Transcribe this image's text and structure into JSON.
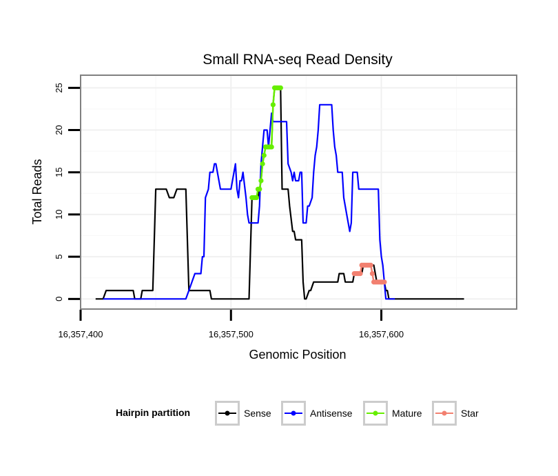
{
  "chart_data": {
    "type": "line",
    "title": "Small RNA-seq Read Density",
    "xlabel": "Genomic Position",
    "ylabel": "Total Reads",
    "xlim": [
      16357400,
      16357690
    ],
    "ylim": [
      -1.2,
      26.5
    ],
    "x_ticks": [
      {
        "value": 16357400,
        "label": "16,357,400"
      },
      {
        "value": 16357500,
        "label": "16,357,500"
      },
      {
        "value": 16357600,
        "label": "16,357,600"
      }
    ],
    "y_ticks": [
      {
        "value": 0,
        "label": "0"
      },
      {
        "value": 5,
        "label": "5"
      },
      {
        "value": 10,
        "label": "10"
      },
      {
        "value": 15,
        "label": "15"
      },
      {
        "value": 20,
        "label": "20"
      },
      {
        "value": 25,
        "label": "25"
      }
    ],
    "grid": true,
    "legend": {
      "title": "Hairpin partition",
      "position": "bottom",
      "entries": [
        "Sense",
        "Antisense",
        "Mature",
        "Star"
      ]
    },
    "series": [
      {
        "name": "Sense",
        "color": "#000000",
        "style": "line",
        "points": [
          [
            16357410,
            0
          ],
          [
            16357415,
            0
          ],
          [
            16357417,
            1
          ],
          [
            16357435,
            1
          ],
          [
            16357436,
            0
          ],
          [
            16357440,
            0
          ],
          [
            16357441,
            1
          ],
          [
            16357448,
            1
          ],
          [
            16357450,
            13
          ],
          [
            16357457,
            13
          ],
          [
            16357459,
            12
          ],
          [
            16357462,
            12
          ],
          [
            16357464,
            13
          ],
          [
            16357470,
            13
          ],
          [
            16357472,
            1
          ],
          [
            16357486,
            1
          ],
          [
            16357487,
            0
          ],
          [
            16357512,
            0
          ],
          [
            16357514,
            12
          ],
          [
            16357518,
            12
          ],
          [
            16357519,
            13
          ],
          [
            16357520,
            14
          ],
          [
            16357521,
            16
          ],
          [
            16357522,
            17
          ],
          [
            16357523,
            18
          ],
          [
            16357527,
            18
          ],
          [
            16357528,
            23
          ],
          [
            16357529,
            25
          ],
          [
            16357533,
            25
          ],
          [
            16357534,
            13
          ],
          [
            16357538,
            13
          ],
          [
            16357539,
            11
          ],
          [
            16357541,
            8
          ],
          [
            16357542,
            8
          ],
          [
            16357543,
            7
          ],
          [
            16357547,
            7
          ],
          [
            16357548,
            2
          ],
          [
            16357549,
            0
          ],
          [
            16357550,
            0
          ],
          [
            16357552,
            1
          ],
          [
            16357553,
            1
          ],
          [
            16357555,
            2
          ],
          [
            16357571,
            2
          ],
          [
            16357572,
            3
          ],
          [
            16357575,
            3
          ],
          [
            16357576,
            2
          ],
          [
            16357581,
            2
          ],
          [
            16357582,
            3
          ],
          [
            16357587,
            3
          ],
          [
            16357588,
            4
          ],
          [
            16357595,
            4
          ],
          [
            16357596,
            3
          ],
          [
            16357597,
            2
          ],
          [
            16357602,
            2
          ],
          [
            16357603,
            1
          ],
          [
            16357604,
            1
          ],
          [
            16357605,
            0
          ],
          [
            16357655,
            0
          ]
        ]
      },
      {
        "name": "Antisense",
        "color": "#0000ff",
        "style": "line",
        "points": [
          [
            16357415,
            0
          ],
          [
            16357470,
            0
          ],
          [
            16357472,
            1
          ],
          [
            16357476,
            3
          ],
          [
            16357480,
            3
          ],
          [
            16357481,
            5
          ],
          [
            16357482,
            5
          ],
          [
            16357483,
            12
          ],
          [
            16357485,
            13
          ],
          [
            16357486,
            15
          ],
          [
            16357488,
            15
          ],
          [
            16357489,
            16
          ],
          [
            16357490,
            16
          ],
          [
            16357492,
            14
          ],
          [
            16357493,
            13
          ],
          [
            16357500,
            13
          ],
          [
            16357503,
            16
          ],
          [
            16357504,
            13
          ],
          [
            16357505,
            12
          ],
          [
            16357506,
            14
          ],
          [
            16357507,
            14
          ],
          [
            16357508,
            15
          ],
          [
            16357510,
            12
          ],
          [
            16357511,
            10
          ],
          [
            16357512,
            9
          ],
          [
            16357518,
            9
          ],
          [
            16357519,
            11
          ],
          [
            16357520,
            16
          ],
          [
            16357521,
            18
          ],
          [
            16357522,
            20
          ],
          [
            16357524,
            20
          ],
          [
            16357525,
            18
          ],
          [
            16357526,
            20
          ],
          [
            16357527,
            22
          ],
          [
            16357528,
            21
          ],
          [
            16357537,
            21
          ],
          [
            16357538,
            16
          ],
          [
            16357540,
            15
          ],
          [
            16357541,
            14
          ],
          [
            16357542,
            15
          ],
          [
            16357543,
            14
          ],
          [
            16357545,
            14
          ],
          [
            16357546,
            15
          ],
          [
            16357547,
            15
          ],
          [
            16357548,
            9
          ],
          [
            16357550,
            9
          ],
          [
            16357551,
            11
          ],
          [
            16357552,
            11
          ],
          [
            16357554,
            12
          ],
          [
            16357555,
            15
          ],
          [
            16357556,
            17
          ],
          [
            16357557,
            18
          ],
          [
            16357558,
            20
          ],
          [
            16357559,
            23
          ],
          [
            16357567,
            23
          ],
          [
            16357568,
            20
          ],
          [
            16357569,
            18
          ],
          [
            16357570,
            17
          ],
          [
            16357571,
            15
          ],
          [
            16357574,
            15
          ],
          [
            16357575,
            12
          ],
          [
            16357577,
            10
          ],
          [
            16357579,
            8
          ],
          [
            16357580,
            9
          ],
          [
            16357581,
            15
          ],
          [
            16357584,
            15
          ],
          [
            16357585,
            13
          ],
          [
            16357598,
            13
          ],
          [
            16357599,
            7
          ],
          [
            16357600,
            5
          ],
          [
            16357601,
            4
          ],
          [
            16357602,
            2
          ],
          [
            16357603,
            0
          ],
          [
            16357609,
            0
          ]
        ]
      },
      {
        "name": "Mature",
        "color": "#66ee00",
        "style": "points",
        "points": [
          [
            16357514,
            12
          ],
          [
            16357515,
            12
          ],
          [
            16357516,
            12
          ],
          [
            16357517,
            12
          ],
          [
            16357518,
            13
          ],
          [
            16357519,
            13
          ],
          [
            16357520,
            14
          ],
          [
            16357521,
            16
          ],
          [
            16357522,
            17
          ],
          [
            16357523,
            18
          ],
          [
            16357524,
            18
          ],
          [
            16357525,
            18
          ],
          [
            16357526,
            18
          ],
          [
            16357527,
            18
          ],
          [
            16357528,
            23
          ],
          [
            16357529,
            25
          ],
          [
            16357530,
            25
          ],
          [
            16357531,
            25
          ],
          [
            16357532,
            25
          ],
          [
            16357533,
            25
          ]
        ]
      },
      {
        "name": "Star",
        "color": "#f28070",
        "style": "points",
        "points": [
          [
            16357582,
            3
          ],
          [
            16357583,
            3
          ],
          [
            16357584,
            3
          ],
          [
            16357585,
            3
          ],
          [
            16357586,
            3
          ],
          [
            16357587,
            4
          ],
          [
            16357588,
            4
          ],
          [
            16357589,
            4
          ],
          [
            16357590,
            4
          ],
          [
            16357591,
            4
          ],
          [
            16357592,
            4
          ],
          [
            16357593,
            4
          ],
          [
            16357594,
            3
          ],
          [
            16357595,
            2
          ],
          [
            16357596,
            2
          ],
          [
            16357597,
            2
          ],
          [
            16357598,
            2
          ],
          [
            16357599,
            2
          ],
          [
            16357600,
            2
          ],
          [
            16357601,
            2
          ],
          [
            16357602,
            2
          ]
        ]
      }
    ]
  }
}
